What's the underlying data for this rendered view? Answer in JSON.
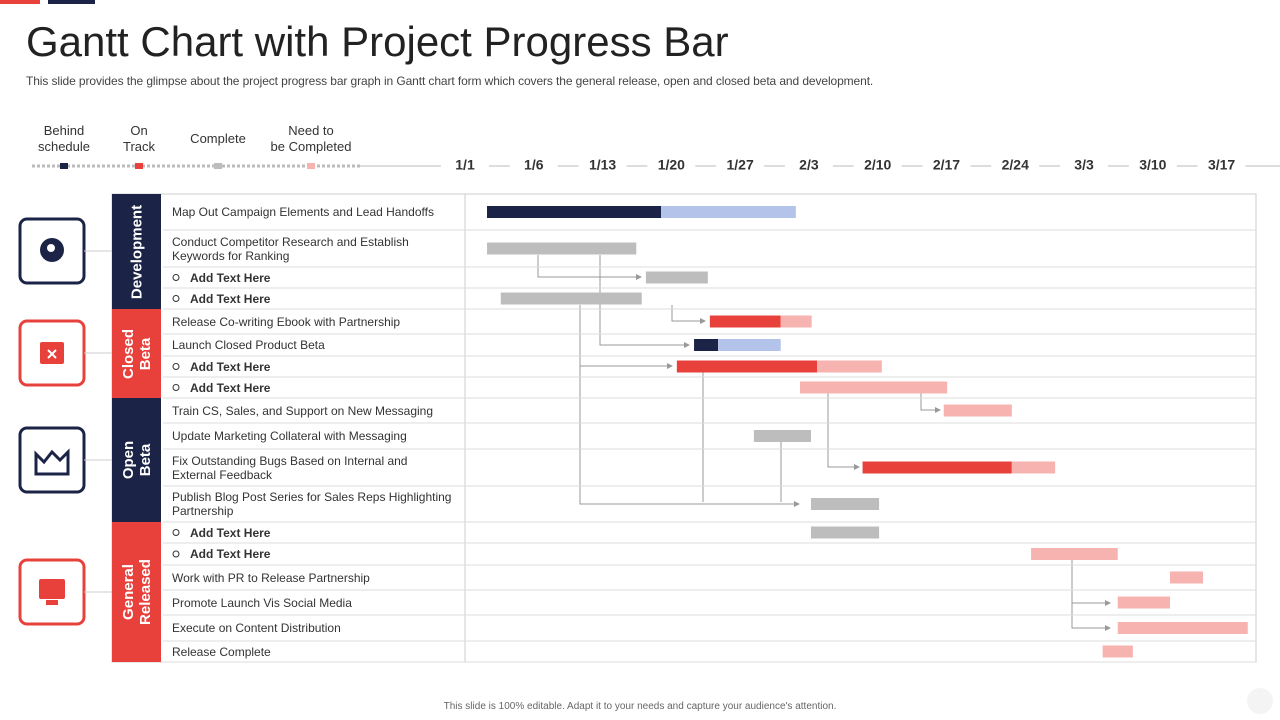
{
  "chart_data": {
    "type": "gantt",
    "title": "Gantt Chart with Project Progress Bar",
    "subtitle": "This slide provides the glimpse about the project progress bar graph in Gantt chart form which covers the general release, open and closed beta and development.",
    "footer": "This slide is 100% editable. Adapt it to your needs and capture your audience's attention.",
    "legend": [
      {
        "name": "Behind\nschedule",
        "color": "#1b2447"
      },
      {
        "name": "On\nTrack",
        "color": "#e8413c"
      },
      {
        "name": "Complete",
        "color": "#bdbdbd"
      },
      {
        "name": "Need to\nbe Completed",
        "color": "#f7b3b0"
      }
    ],
    "xlim": [
      0,
      11.5
    ],
    "xticks": [
      {
        "value": 0,
        "label": "1/1"
      },
      {
        "value": 1,
        "label": "1/6"
      },
      {
        "value": 2,
        "label": "1/13"
      },
      {
        "value": 3,
        "label": "1/20"
      },
      {
        "value": 4,
        "label": "1/27"
      },
      {
        "value": 5,
        "label": "2/3"
      },
      {
        "value": 6,
        "label": "2/10"
      },
      {
        "value": 7,
        "label": "2/17"
      },
      {
        "value": 8,
        "label": "2/24"
      },
      {
        "value": 9,
        "label": "3/3"
      },
      {
        "value": 10,
        "label": "3/10"
      },
      {
        "value": 11,
        "label": "3/17"
      }
    ],
    "groups": [
      {
        "name": "Development",
        "color": "#1b2447",
        "tasks": [
          {
            "name": "Map Out Campaign Elements and Lead Handoffs",
            "bars": [
              {
                "start": 0.32,
                "end": 2.85,
                "color": "#1b2447"
              },
              {
                "start": 2.85,
                "end": 4.81,
                "color": "#b4c3ea"
              }
            ]
          },
          {
            "name": "Conduct Competitor Research and Establish\nKeywords for Ranking",
            "bars": [
              {
                "start": 0.32,
                "end": 2.49,
                "color": "#bdbdbd"
              }
            ]
          },
          {
            "name": "Add Text Here",
            "bullet": true,
            "bars": [
              {
                "start": 2.63,
                "end": 3.53,
                "color": "#bdbdbd"
              }
            ]
          },
          {
            "name": "Add Text Here",
            "bullet": true,
            "bars": [
              {
                "start": 0.52,
                "end": 2.57,
                "color": "#bdbdbd"
              }
            ]
          }
        ]
      },
      {
        "name": "Closed\nBeta",
        "color": "#e8413c",
        "tasks": [
          {
            "name": "Release Co-writing Ebook with  Partnership",
            "bars": [
              {
                "start": 3.56,
                "end": 4.59,
                "color": "#e8413c"
              },
              {
                "start": 4.59,
                "end": 5.04,
                "color": "#f7b3b0"
              }
            ]
          },
          {
            "name": "Launch Closed Product Beta",
            "bars": [
              {
                "start": 3.33,
                "end": 3.68,
                "color": "#1b2447"
              },
              {
                "start": 3.68,
                "end": 4.59,
                "color": "#b4c3ea"
              }
            ]
          },
          {
            "name": "Add Text Here",
            "bullet": true,
            "bars": [
              {
                "start": 3.08,
                "end": 5.12,
                "color": "#e8413c"
              },
              {
                "start": 5.12,
                "end": 6.06,
                "color": "#f7b3b0"
              }
            ]
          },
          {
            "name": "Add Text Here",
            "bullet": true,
            "bars": [
              {
                "start": 4.87,
                "end": 7.01,
                "color": "#f7b3b0"
              }
            ]
          }
        ]
      },
      {
        "name": "Open\nBeta",
        "color": "#1b2447",
        "tasks": [
          {
            "name": "Train CS, Sales, and Support on New Messaging",
            "bars": [
              {
                "start": 6.96,
                "end": 7.95,
                "color": "#f7b3b0"
              }
            ]
          },
          {
            "name": "Update Marketing Collateral with Messaging",
            "bars": [
              {
                "start": 4.2,
                "end": 5.03,
                "color": "#bdbdbd"
              }
            ]
          },
          {
            "name": "Fix Outstanding Bugs Based on Internal and\nExternal Feedback",
            "bars": [
              {
                "start": 5.78,
                "end": 7.95,
                "color": "#e8413c"
              },
              {
                "start": 7.95,
                "end": 8.58,
                "color": "#f7b3b0"
              }
            ]
          },
          {
            "name": "Publish Blog Post Series for Sales Reps Highlighting\nPartnership",
            "bars": [
              {
                "start": 5.03,
                "end": 6.02,
                "color": "#bdbdbd"
              }
            ]
          }
        ]
      },
      {
        "name": "General\nReleased",
        "color": "#e8413c",
        "tasks": [
          {
            "name": "Add Text Here",
            "bullet": true,
            "bars": [
              {
                "start": 5.03,
                "end": 6.02,
                "color": "#bdbdbd"
              }
            ]
          },
          {
            "name": "Add Text Here",
            "bullet": true,
            "bars": [
              {
                "start": 8.23,
                "end": 9.49,
                "color": "#f7b3b0"
              }
            ]
          },
          {
            "name": "Work with PR to Release Partnership",
            "bars": [
              {
                "start": 10.25,
                "end": 10.73,
                "color": "#f7b3b0"
              }
            ]
          },
          {
            "name": "Promote Launch Vis Social Media",
            "bars": [
              {
                "start": 9.49,
                "end": 10.25,
                "color": "#f7b3b0"
              }
            ]
          },
          {
            "name": "Execute  on Content Distribution",
            "bars": [
              {
                "start": 9.49,
                "end": 11.38,
                "color": "#f7b3b0"
              }
            ]
          },
          {
            "name": "Release Complete",
            "bars": [
              {
                "start": 9.27,
                "end": 9.71,
                "color": "#f7b3b0"
              }
            ]
          }
        ]
      }
    ]
  }
}
